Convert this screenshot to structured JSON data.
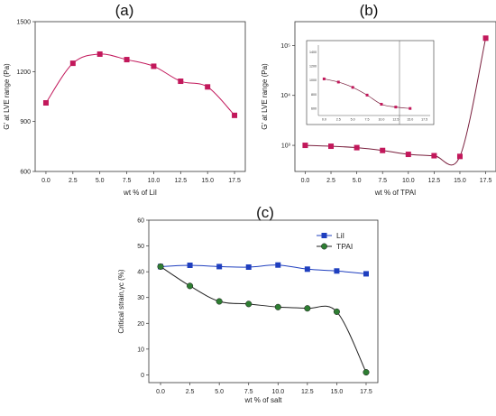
{
  "chart_data": [
    {
      "panel_label": "(a)",
      "type": "line",
      "xlabel": "wt % of LiI",
      "ylabel": "G' at LVE range (Pa)",
      "xlim": [
        -1,
        18.5
      ],
      "ylim": [
        600,
        1500
      ],
      "x_ticks": [
        "0.0",
        "2.5",
        "5.0",
        "7.5",
        "10.0",
        "12.5",
        "15.0",
        "17.5"
      ],
      "y_ticks": [
        "600",
        "900",
        "1200",
        "1500"
      ],
      "series": [
        {
          "color": "#c2185b",
          "marker": "square",
          "line_color": "#c2185b",
          "x": [
            0,
            2.5,
            5,
            7.5,
            10,
            12.5,
            15,
            17.5
          ],
          "y": [
            1012,
            1250,
            1305,
            1272,
            1232,
            1142,
            1108,
            937
          ]
        }
      ]
    },
    {
      "panel_label": "(b)",
      "type": "line",
      "log_y": true,
      "xlabel": "wt % of TPAI",
      "ylabel": "G' at LVE range (Pa)",
      "xlim": [
        -1,
        18.5
      ],
      "ylim": [
        300,
        300000
      ],
      "x_ticks": [
        "0.0",
        "2.5",
        "5.0",
        "7.5",
        "10.0",
        "12.5",
        "15.0",
        "17.5"
      ],
      "y_ticks": [
        "10³",
        "10⁴",
        "10⁵"
      ],
      "series": [
        {
          "color": "#c2185b",
          "marker": "square",
          "line_color": "#7a1f3d",
          "x": [
            0,
            2.5,
            5,
            7.5,
            10,
            12.5,
            15,
            17.5
          ],
          "y": [
            1000,
            960,
            900,
            790,
            660,
            620,
            600,
            140000
          ]
        }
      ],
      "inset": {
        "x_ticks": [
          "0.0",
          "2.5",
          "5.0",
          "7.5",
          "10.0",
          "12.5",
          "15.0",
          "17.5"
        ],
        "y_ticks": [
          "600",
          "800",
          "1000",
          "1200",
          "1400"
        ],
        "xlim": [
          -1,
          18.5
        ],
        "ylim": [
          500,
          1500
        ],
        "x": [
          0,
          2.5,
          5,
          7.5,
          10,
          12.5,
          15
        ],
        "y": [
          1020,
          975,
          900,
          790,
          660,
          620,
          600
        ]
      }
    },
    {
      "panel_label": "(c)",
      "type": "line",
      "xlabel": "wt % of salt",
      "ylabel": "Critical strain,γc (%)",
      "xlim": [
        -1,
        18.5
      ],
      "ylim": [
        -3,
        60
      ],
      "x_ticks": [
        "0.0",
        "2.5",
        "5.0",
        "7.5",
        "10.0",
        "12.5",
        "15.0",
        "17.5"
      ],
      "y_ticks": [
        "0",
        "10",
        "20",
        "30",
        "40",
        "50",
        "60"
      ],
      "legend_position": "top-right",
      "series": [
        {
          "name": "LiI",
          "color": "#1f3fbf",
          "marker": "square",
          "line_color": "#1f3fbf",
          "x": [
            0,
            2.5,
            5,
            7.5,
            10,
            12.5,
            15,
            17.5
          ],
          "y": [
            42,
            42.5,
            42,
            41.8,
            42.6,
            41,
            40.3,
            39.2
          ]
        },
        {
          "name": "TPAI",
          "color": "#2e7d32",
          "marker": "circle",
          "line_color": "#222222",
          "x": [
            0,
            2.5,
            5,
            7.5,
            10,
            12.5,
            15,
            17.5
          ],
          "y": [
            42,
            34.5,
            28.5,
            27.5,
            26.3,
            25.8,
            24.5,
            1
          ]
        }
      ]
    }
  ]
}
